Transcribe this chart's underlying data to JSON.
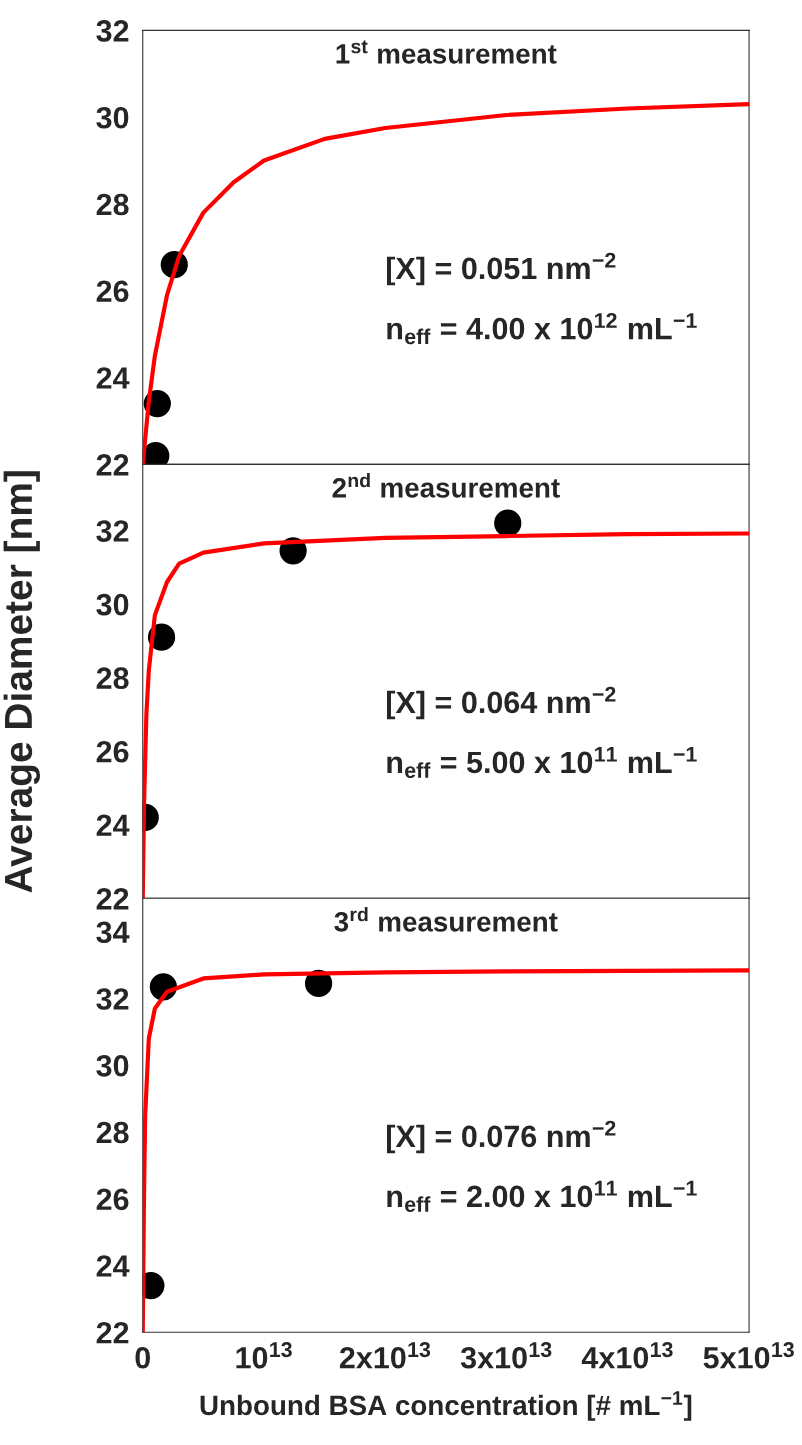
{
  "chart_data": [
    {
      "type": "scatter",
      "title": "1$^{st}$ measurement",
      "xlim": [
        0,
        50000000000000.0
      ],
      "ylim": [
        22,
        32
      ],
      "tick_labels": "y",
      "xticks": [
        {
          "value": 10000000000000.0,
          "label": null
        },
        {
          "value": 20000000000000.0,
          "label": null
        },
        {
          "value": 30000000000000.0,
          "label": null
        },
        {
          "value": 40000000000000.0,
          "label": null
        }
      ],
      "yticks": [
        22,
        24,
        26,
        28,
        30,
        32
      ],
      "grid": false,
      "legend": false,
      "annotations": [
        "[X] = 0.051 nm$^{−2}$",
        "n$_{eff}$ = 4.00 x 10$^{12}$ mL$^{−1}$"
      ],
      "series": [
        {
          "color": "#000000",
          "marker": "circle",
          "x": [
            1070000000000.0,
            1200000000000.0,
            2600000000000.0
          ],
          "values": [
            22.2,
            23.4,
            26.6
          ]
        },
        {
          "type": "line",
          "color": "#ff0000",
          "marker": "none",
          "line_style": "solid",
          "x": [
            0,
            500000000000.0,
            1000000000000.0,
            2000000000000.0,
            3000000000000.0,
            5000000000000.0,
            7500000000000.0,
            10000000000000.0,
            15000000000000.0,
            20000000000000.0,
            30000000000000.0,
            40000000000000.0,
            50000000000000.0
          ],
          "values": [
            22,
            23.45,
            24.5,
            25.9,
            26.8,
            27.8,
            28.5,
            29.0,
            29.5,
            29.75,
            30.05,
            30.2,
            30.3
          ]
        }
      ]
    },
    {
      "type": "scatter",
      "title": "2$^{nd}$ measurement",
      "ylabel": "Average Diameter [nm]",
      "xlim": [
        0,
        50000000000000.0
      ],
      "ylim": [
        22,
        33.8
      ],
      "tick_labels": "y",
      "xticks": [
        {
          "value": 10000000000000.0,
          "label": null
        },
        {
          "value": 20000000000000.0,
          "label": null
        },
        {
          "value": 30000000000000.0,
          "label": null
        },
        {
          "value": 40000000000000.0,
          "label": null
        }
      ],
      "yticks": [
        22,
        24,
        26,
        28,
        30,
        32
      ],
      "grid": false,
      "legend": false,
      "annotations": [
        "[X] = 0.064 nm$^{−2}$",
        "n$_{eff}$ = 5.00 x 10$^{11}$ mL$^{−1}$"
      ],
      "series": [
        {
          "color": "#000000",
          "marker": "circle",
          "x": [
            200000000000.0,
            1550000000000.0,
            12400000000000.0,
            30100000000000.0
          ],
          "values": [
            24.2,
            29.1,
            31.45,
            32.2
          ]
        },
        {
          "type": "line",
          "color": "#ff0000",
          "marker": "none",
          "line_style": "solid",
          "x": [
            0,
            100000000000.0,
            300000000000.0,
            500000000000.0,
            1000000000000.0,
            2000000000000.0,
            3000000000000.0,
            5000000000000.0,
            10000000000000.0,
            20000000000000.0,
            30000000000000.0,
            40000000000000.0,
            50000000000000.0
          ],
          "values": [
            22,
            24.5,
            27.0,
            28.2,
            29.7,
            30.6,
            31.1,
            31.4,
            31.65,
            31.8,
            31.85,
            31.9,
            31.92
          ]
        }
      ]
    },
    {
      "type": "scatter",
      "title": "3$^{rd}$ measurement",
      "xlabel": "Unbound BSA concentration [# mL$^{−1}$]",
      "xlim": [
        0,
        50000000000000.0
      ],
      "ylim": [
        22,
        35
      ],
      "xticks": [
        0,
        {
          "value": 10000000000000.0,
          "label": "10$^{13}$"
        },
        {
          "value": 20000000000000.0,
          "label": "2x10$^{13}$"
        },
        {
          "value": 30000000000000.0,
          "label": "3x10$^{13}$"
        },
        {
          "value": 40000000000000.0,
          "label": "4x10$^{13}$"
        },
        {
          "value": 50000000000000.0,
          "label": "5x10$^{13}$"
        }
      ],
      "yticks": [
        22,
        24,
        26,
        28,
        30,
        32,
        34
      ],
      "grid": false,
      "legend": false,
      "annotations": [
        "[X] = 0.076 nm$^{−2}$",
        "n$_{eff}$ = 2.00 x 10$^{11}$ mL$^{−1}$"
      ],
      "series": [
        {
          "color": "#000000",
          "marker": "circle",
          "x": [
            670000000000.0,
            1700000000000.0,
            14500000000000.0
          ],
          "values": [
            23.4,
            32.35,
            32.45
          ]
        },
        {
          "type": "line",
          "color": "#ff0000",
          "marker": "none",
          "line_style": "solid",
          "x": [
            0,
            100000000000.0,
            200000000000.0,
            500000000000.0,
            1000000000000.0,
            2000000000000.0,
            5000000000000.0,
            10000000000000.0,
            20000000000000.0,
            30000000000000.0,
            50000000000000.0
          ],
          "values": [
            22,
            26.0,
            28.5,
            30.8,
            31.7,
            32.2,
            32.6,
            32.72,
            32.78,
            32.81,
            32.84
          ]
        }
      ]
    }
  ]
}
